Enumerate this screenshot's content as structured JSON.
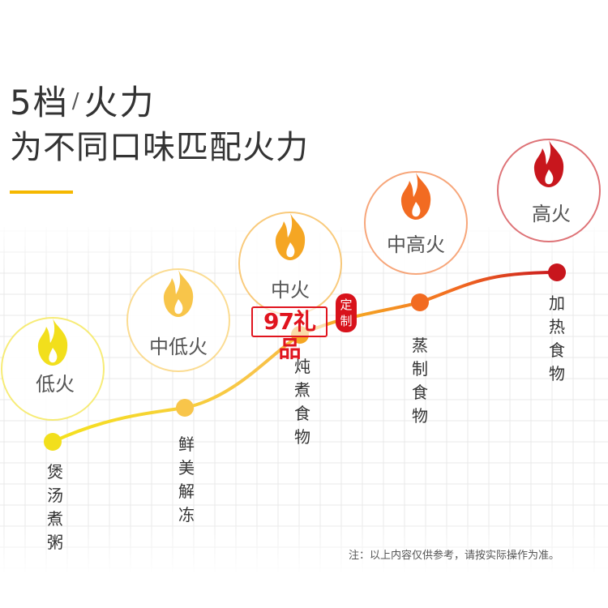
{
  "title": {
    "line1_a": "5档",
    "line1_sep": "/",
    "line1_b": "火力",
    "line2": "为不同口味匹配火力"
  },
  "levels": [
    {
      "label": "低火",
      "use": "煲汤煮粥",
      "color": "#f2df1c"
    },
    {
      "label": "中低火",
      "use": "鲜美解冻",
      "color": "#f8c54a"
    },
    {
      "label": "中火",
      "use": "炖煮食物",
      "color": "#f5a623"
    },
    {
      "label": "中高火",
      "use": "蒸制食物",
      "color": "#f26b21"
    },
    {
      "label": "高火",
      "use": "加热食物",
      "color": "#c8161d"
    }
  ],
  "note": "注：以上内容仅供参考，请按实际操作为准。",
  "watermark": {
    "text": "97礼品",
    "seal": "定制"
  },
  "icons": {
    "flame": "flame-icon"
  }
}
